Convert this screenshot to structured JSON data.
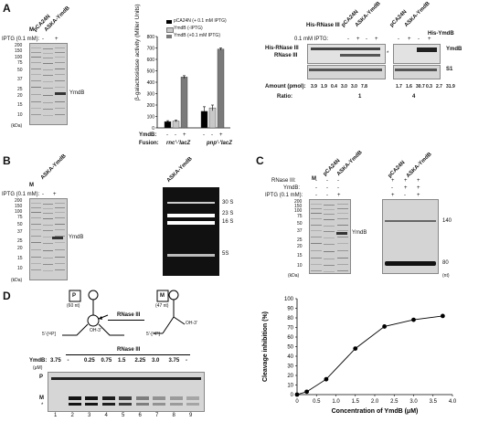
{
  "panels": {
    "A": "A",
    "B": "B",
    "C": "C",
    "D": "D"
  },
  "a_gel": {
    "cols": [
      "M",
      "pCA24N",
      "ASKA-YmdB"
    ],
    "iptg_label": "IPTG (0.1 mM):",
    "iptg": [
      "-",
      "-",
      "+"
    ],
    "markers": [
      "200",
      "150",
      "100",
      "75",
      "50",
      "37",
      "25",
      "20",
      "15",
      "10"
    ],
    "unit": "(kDa)",
    "band_label": "YmdB"
  },
  "a_bar": {
    "legend": [
      "pCA24N (+ 0.1 mM IPTG)",
      "YmdB (-IPTG)",
      "YmdB (+0.1 mM IPTG)"
    ],
    "legend_colors": [
      "#000000",
      "#c8c8c8",
      "#7a7a7a"
    ],
    "ylabel": "β-galactosidase activity\n(Miller Units)",
    "row_ymdb_label": "YmdB:",
    "row_ymdb": [
      "-",
      "-",
      "+",
      "-",
      "-",
      "+"
    ],
    "row_fusion_label": "Fusion:",
    "fusions": [
      "rnc'-'lacZ",
      "pnp'-'lacZ"
    ]
  },
  "chart_data": {
    "type": "bar",
    "categories": [
      "rnc'-'lacZ",
      "pnp'-'lacZ"
    ],
    "series": [
      {
        "name": "pCA24N (+ 0.1 mM IPTG)",
        "values": [
          55,
          145
        ]
      },
      {
        "name": "YmdB (-IPTG)",
        "values": [
          60,
          175
        ]
      },
      {
        "name": "YmdB (+0.1 mM IPTG)",
        "values": [
          445,
          690
        ]
      }
    ],
    "errors": [
      [
        8,
        40
      ],
      [
        8,
        25
      ],
      [
        12,
        10
      ]
    ],
    "ylim": [
      0,
      800
    ],
    "yticks": [
      "0",
      "100",
      "200",
      "300",
      "400",
      "500",
      "600",
      "700",
      "800"
    ],
    "ylabel": "β-galactosidase activity (Miller Units)"
  },
  "a_wb": {
    "cols": [
      "His-RNase III",
      "pCA24N",
      "ASKA-YmdB"
    ],
    "cols2": [
      "pCA24N",
      "ASKA-YmdB",
      "His-YmdB"
    ],
    "iptg_label": "0.1 mM IPTG:",
    "iptg": [
      "-",
      "-",
      "+",
      "-",
      "+"
    ],
    "iptg2": [
      "-",
      "+",
      "-",
      "+"
    ],
    "left_labels": [
      "His-RNase III",
      "RNase III"
    ],
    "star": "*",
    "right_labels": [
      "YmdB",
      "S1"
    ],
    "amount_label": "Amount (pmol):",
    "amounts": [
      "3.9",
      "1.9",
      "0.4",
      "3.0",
      "3.0",
      "7.8",
      "1.7",
      "1.6",
      "30.7",
      "0.3",
      "2.7",
      "31.9"
    ],
    "ratio_label": "Ratio:",
    "ratios": [
      "1",
      "4"
    ]
  },
  "b_gel": {
    "cols": [
      "M",
      "ASKA-YmdB"
    ],
    "iptg_label": "IPTG (0.1 mM):",
    "iptg": [
      "-",
      "+"
    ],
    "markers": [
      "200",
      "150",
      "100",
      "75",
      "50",
      "37",
      "25",
      "20",
      "15",
      "10"
    ],
    "unit": "(kDa)",
    "band_label": "YmdB"
  },
  "b_rna": {
    "title": "ASKA-YmdB",
    "labels": [
      "30 S",
      "23 S",
      "16 S",
      "5S"
    ]
  },
  "c_gel": {
    "cols": [
      "M",
      "pCA24N",
      "ASKA-YmdB"
    ],
    "rows": [
      "RNase III:",
      "YmdB:",
      "IPTG (0.1 mM):"
    ],
    "row_vals": [
      [
        "-",
        "-",
        "-"
      ],
      [
        "-",
        "-",
        "-"
      ],
      [
        "-",
        "-",
        "+"
      ]
    ],
    "markers": [
      "200",
      "150",
      "100",
      "75",
      "50",
      "37",
      "25",
      "20",
      "15",
      "10"
    ],
    "unit": "(kDa)",
    "band_label": "YmdB"
  },
  "c_rna": {
    "cols": [
      "pCA24N",
      "ASKA-YmdB"
    ],
    "vals": [
      [
        "+",
        "+",
        "+"
      ],
      [
        "-",
        "+",
        "+"
      ],
      [
        "+",
        "-",
        "+"
      ]
    ],
    "labels": [
      "140",
      "80"
    ],
    "unit": "(nt)"
  },
  "d_diagram": {
    "p_label": "P",
    "p_size": "(60 nt)",
    "m_label": "M",
    "m_size": "(47 nt)",
    "enzyme": "RNase III",
    "p_5end": "5'-[³²P]",
    "p_3end": "OH-3'",
    "m_5end": "5'-[³²P]",
    "m_3end": "OH-3'"
  },
  "d_gel": {
    "header": "RNase III",
    "ymdb_label": "YmdB:",
    "conc_unit": "(μM)",
    "concs": [
      "3.75",
      "-",
      "0.25",
      "0.75",
      "1.5",
      "2.25",
      "3.0",
      "3.75",
      "-"
    ],
    "side_p": "P",
    "side_m": "M",
    "star": "*",
    "lanes": [
      "1",
      "2",
      "3",
      "4",
      "5",
      "6",
      "7",
      "8",
      "9"
    ]
  },
  "d_chart": {
    "type": "line",
    "x": [
      0,
      0.25,
      0.75,
      1.5,
      2.25,
      3.0,
      3.75
    ],
    "y": [
      0,
      3,
      16,
      48,
      71,
      78,
      82
    ],
    "xlim": [
      0,
      4.0
    ],
    "ylim": [
      0,
      100
    ],
    "xticks": [
      "0",
      "0.5",
      "1.0",
      "1.5",
      "2.0",
      "2.5",
      "3.0",
      "3.5",
      "4.0"
    ],
    "yticks": [
      "0",
      "10",
      "20",
      "30",
      "40",
      "50",
      "60",
      "70",
      "80",
      "90",
      "100"
    ],
    "xlabel": "Concentration of YmdB (μM)",
    "ylabel": "Cleavage inhibition (%)"
  }
}
